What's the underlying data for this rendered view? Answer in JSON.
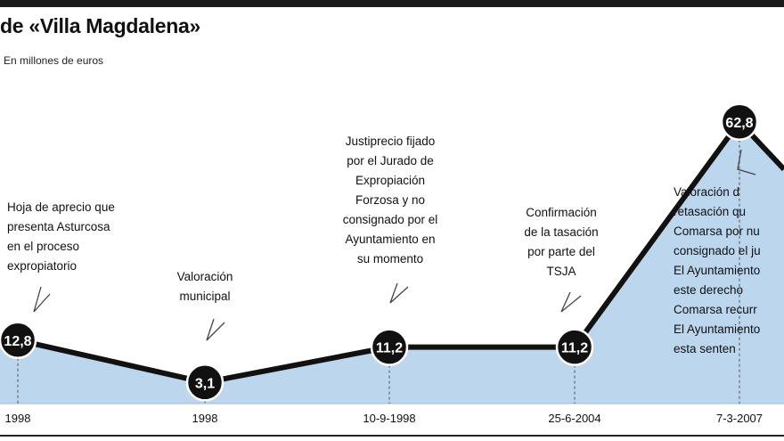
{
  "title": "de «Villa Magdalena»",
  "subtitle": "En millones de euros",
  "chart_data": {
    "type": "area",
    "title": "de «Villa Magdalena»",
    "subtitle": "En millones de euros",
    "categories": [
      "1998",
      "1998",
      "10-9-1998",
      "25-6-2004",
      "7-3-2007"
    ],
    "values": [
      12.8,
      3.1,
      11.2,
      11.2,
      62.8
    ],
    "value_labels": [
      "12,8",
      "3,1",
      "11,2",
      "11,2",
      "62,8"
    ],
    "annotations": [
      [
        "Hoja de aprecio que",
        "presenta Asturcosa",
        "en el proceso",
        "expropiatorio"
      ],
      [
        "Valoración",
        "municipal"
      ],
      [
        "Justiprecio fijado",
        "por el Jurado de",
        "Expropiación",
        "Forzosa y no",
        "consignado por el",
        "Ayuntamiento en",
        "su momento"
      ],
      [
        "Confirmación",
        "de la tasación",
        "por parte del",
        "TSJA"
      ],
      [
        "Valoración d",
        "retasación qu",
        "Comarsa por nu",
        "consignado el ju",
        "El Ayuntamiento",
        "este derecho",
        "Comarsa recurr",
        "El Ayuntamiento",
        "esta senten"
      ]
    ],
    "colors": {
      "fill": "#bcd6ee",
      "line": "#111111",
      "bubble": "#111111",
      "bubble_text": "#ffffff"
    },
    "grid": false,
    "legend": "none"
  }
}
